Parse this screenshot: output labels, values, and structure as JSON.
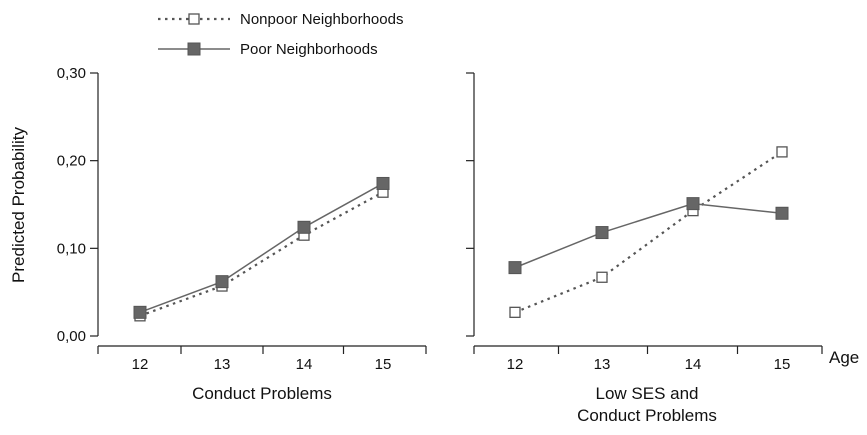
{
  "chart_data": [
    {
      "type": "line",
      "xlabel": "Conduct Problems",
      "ylabel": "Predicted Probability",
      "categories": [
        "12",
        "13",
        "14",
        "15"
      ],
      "ylim": [
        0,
        0.3
      ],
      "yticks": [
        "0,00",
        "0,10",
        "0,20",
        "0,30"
      ],
      "series": [
        {
          "name": "Nonpoor Neighborhoods",
          "values": [
            0.023,
            0.057,
            0.115,
            0.164
          ],
          "line_style": "dotted",
          "marker": "open-square",
          "color": "#555555"
        },
        {
          "name": "Poor Neighborhoods",
          "values": [
            0.027,
            0.062,
            0.124,
            0.174
          ],
          "line_style": "solid",
          "marker": "filled-square",
          "color": "#666666"
        }
      ],
      "legend": "top-left",
      "grid": false
    },
    {
      "type": "line",
      "xlabel": "Low SES and Conduct Problems",
      "xlabel_lines": [
        "Low SES and",
        "Conduct Problems"
      ],
      "extra_axis_label": "Age",
      "categories": [
        "12",
        "13",
        "14",
        "15"
      ],
      "ylim": [
        0,
        0.3
      ],
      "series": [
        {
          "name": "Nonpoor Neighborhoods",
          "values": [
            0.027,
            0.067,
            0.143,
            0.21
          ],
          "line_style": "dotted",
          "marker": "open-square",
          "color": "#555555"
        },
        {
          "name": "Poor Neighborhoods",
          "values": [
            0.078,
            0.118,
            0.151,
            0.14
          ],
          "line_style": "solid",
          "marker": "filled-square",
          "color": "#666666"
        }
      ],
      "grid": false
    }
  ]
}
